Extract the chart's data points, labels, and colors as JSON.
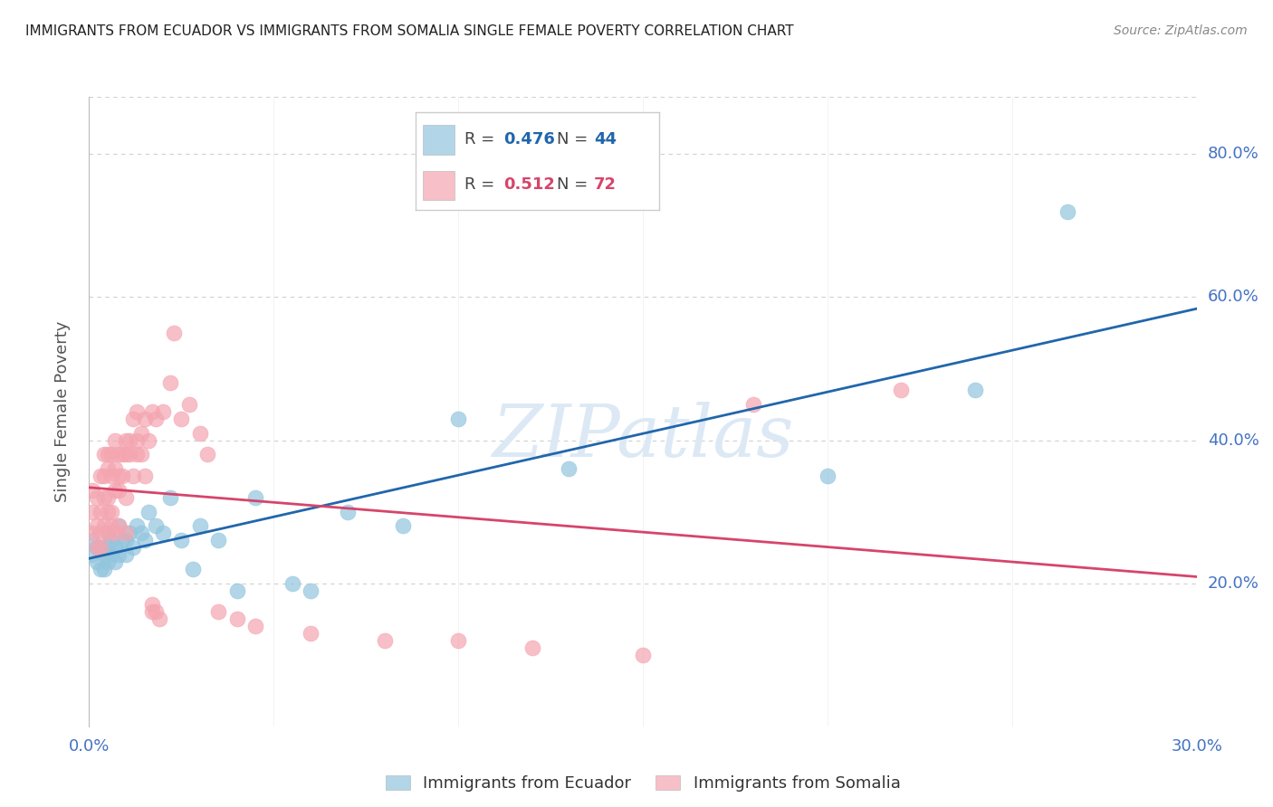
{
  "title": "IMMIGRANTS FROM ECUADOR VS IMMIGRANTS FROM SOMALIA SINGLE FEMALE POVERTY CORRELATION CHART",
  "source": "Source: ZipAtlas.com",
  "ylabel": "Single Female Poverty",
  "xlim": [
    0.0,
    0.3
  ],
  "ylim": [
    0.0,
    0.88
  ],
  "yticks": [
    0.2,
    0.4,
    0.6,
    0.8
  ],
  "ytick_labels": [
    "20.0%",
    "40.0%",
    "60.0%",
    "80.0%"
  ],
  "xticks": [
    0.0,
    0.05,
    0.1,
    0.15,
    0.2,
    0.25,
    0.3
  ],
  "xtick_labels": [
    "0.0%",
    "",
    "",
    "",
    "",
    "",
    "30.0%"
  ],
  "ecuador_R": 0.476,
  "ecuador_N": 44,
  "somalia_R": 0.512,
  "somalia_N": 72,
  "ecuador_color": "#92c5de",
  "somalia_color": "#f4a5b0",
  "ecuador_line_color": "#2166ac",
  "somalia_line_color": "#d6456b",
  "watermark": "ZIPatlas",
  "watermark_color": "#dce9f5",
  "background_color": "#ffffff",
  "grid_color": "#d0d0d0",
  "axis_label_color": "#4472c4",
  "title_color": "#222222",
  "ecuador_x": [
    0.001,
    0.001,
    0.002,
    0.002,
    0.003,
    0.003,
    0.004,
    0.004,
    0.005,
    0.005,
    0.005,
    0.006,
    0.006,
    0.007,
    0.007,
    0.008,
    0.008,
    0.009,
    0.01,
    0.01,
    0.011,
    0.012,
    0.013,
    0.014,
    0.015,
    0.016,
    0.018,
    0.02,
    0.022,
    0.025,
    0.028,
    0.03,
    0.035,
    0.04,
    0.045,
    0.055,
    0.06,
    0.07,
    0.085,
    0.1,
    0.13,
    0.2,
    0.24,
    0.265
  ],
  "ecuador_y": [
    0.26,
    0.24,
    0.25,
    0.23,
    0.25,
    0.22,
    0.24,
    0.22,
    0.25,
    0.23,
    0.27,
    0.24,
    0.26,
    0.25,
    0.23,
    0.28,
    0.24,
    0.26,
    0.26,
    0.24,
    0.27,
    0.25,
    0.28,
    0.27,
    0.26,
    0.3,
    0.28,
    0.27,
    0.32,
    0.26,
    0.22,
    0.28,
    0.26,
    0.19,
    0.32,
    0.2,
    0.19,
    0.3,
    0.28,
    0.43,
    0.36,
    0.35,
    0.47,
    0.72
  ],
  "somalia_x": [
    0.001,
    0.001,
    0.001,
    0.002,
    0.002,
    0.002,
    0.003,
    0.003,
    0.003,
    0.003,
    0.004,
    0.004,
    0.004,
    0.004,
    0.005,
    0.005,
    0.005,
    0.005,
    0.005,
    0.006,
    0.006,
    0.006,
    0.006,
    0.007,
    0.007,
    0.007,
    0.007,
    0.008,
    0.008,
    0.008,
    0.008,
    0.009,
    0.009,
    0.01,
    0.01,
    0.01,
    0.01,
    0.011,
    0.011,
    0.012,
    0.012,
    0.013,
    0.013,
    0.013,
    0.014,
    0.014,
    0.015,
    0.015,
    0.016,
    0.017,
    0.017,
    0.017,
    0.018,
    0.018,
    0.019,
    0.02,
    0.022,
    0.023,
    0.025,
    0.027,
    0.03,
    0.032,
    0.035,
    0.04,
    0.045,
    0.06,
    0.08,
    0.1,
    0.12,
    0.15,
    0.18,
    0.22
  ],
  "somalia_y": [
    0.27,
    0.3,
    0.33,
    0.25,
    0.28,
    0.32,
    0.3,
    0.27,
    0.25,
    0.35,
    0.28,
    0.32,
    0.38,
    0.35,
    0.3,
    0.27,
    0.38,
    0.32,
    0.36,
    0.3,
    0.38,
    0.35,
    0.28,
    0.33,
    0.36,
    0.4,
    0.27,
    0.33,
    0.35,
    0.38,
    0.28,
    0.38,
    0.35,
    0.4,
    0.38,
    0.32,
    0.27,
    0.4,
    0.38,
    0.43,
    0.35,
    0.4,
    0.38,
    0.44,
    0.41,
    0.38,
    0.43,
    0.35,
    0.4,
    0.16,
    0.17,
    0.44,
    0.43,
    0.16,
    0.15,
    0.44,
    0.48,
    0.55,
    0.43,
    0.45,
    0.41,
    0.38,
    0.16,
    0.15,
    0.14,
    0.13,
    0.12,
    0.12,
    0.11,
    0.1,
    0.45,
    0.47
  ]
}
